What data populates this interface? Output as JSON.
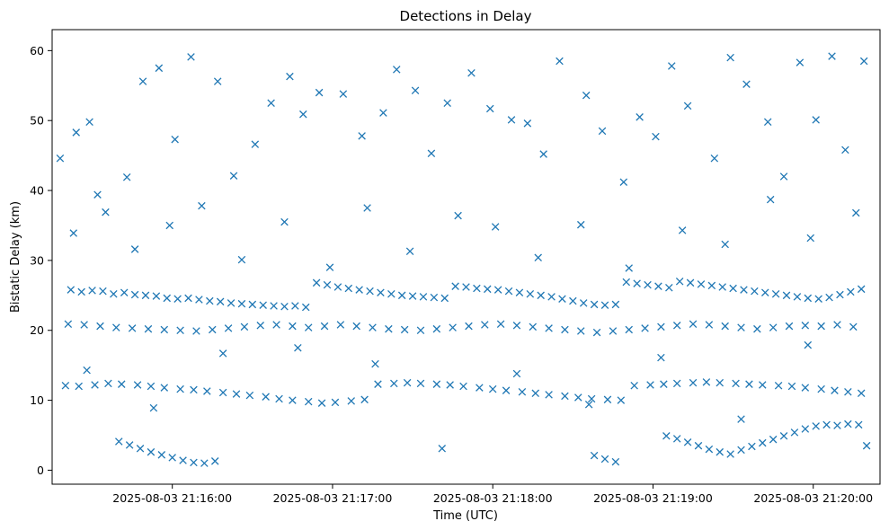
{
  "chart_data": {
    "type": "scatter",
    "title": "Detections in Delay",
    "xlabel": "Time (UTC)",
    "ylabel": "Bistatic Delay (km)",
    "marker": "x",
    "color": "#1f77b4",
    "grid": false,
    "legend": "none",
    "xlim": [
      "2025-08-03 21:15:15",
      "2025-08-03 21:20:25"
    ],
    "ylim": [
      -2,
      63
    ],
    "xticks": [
      {
        "value": "2025-08-03 21:16:00",
        "label": "2025-08-03 21:16:00"
      },
      {
        "value": "2025-08-03 21:17:00",
        "label": "2025-08-03 21:17:00"
      },
      {
        "value": "2025-08-03 21:18:00",
        "label": "2025-08-03 21:18:00"
      },
      {
        "value": "2025-08-03 21:19:00",
        "label": "2025-08-03 21:19:00"
      },
      {
        "value": "2025-08-03 21:20:00",
        "label": "2025-08-03 21:20:00"
      }
    ],
    "yticks": [
      0,
      10,
      20,
      30,
      40,
      50,
      60
    ],
    "ytick_labels": [
      "0",
      "10",
      "20",
      "30",
      "40",
      "50",
      "60"
    ],
    "series": [
      {
        "x": [
          "2025-08-03 21:15:22",
          "2025-08-03 21:15:26",
          "2025-08-03 21:15:30",
          "2025-08-03 21:15:34",
          "2025-08-03 21:15:38",
          "2025-08-03 21:15:42",
          "2025-08-03 21:15:46",
          "2025-08-03 21:15:50",
          "2025-08-03 21:15:54",
          "2025-08-03 21:15:58",
          "2025-08-03 21:16:02",
          "2025-08-03 21:16:06",
          "2025-08-03 21:16:10",
          "2025-08-03 21:16:14",
          "2025-08-03 21:16:18",
          "2025-08-03 21:16:22",
          "2025-08-03 21:16:26",
          "2025-08-03 21:16:30",
          "2025-08-03 21:16:34",
          "2025-08-03 21:16:38",
          "2025-08-03 21:16:42",
          "2025-08-03 21:16:46",
          "2025-08-03 21:16:50",
          "2025-08-03 21:16:54",
          "2025-08-03 21:16:58",
          "2025-08-03 21:17:02",
          "2025-08-03 21:17:06",
          "2025-08-03 21:17:10",
          "2025-08-03 21:17:14",
          "2025-08-03 21:17:18",
          "2025-08-03 21:17:22",
          "2025-08-03 21:17:26",
          "2025-08-03 21:17:30",
          "2025-08-03 21:17:34",
          "2025-08-03 21:17:38",
          "2025-08-03 21:17:42",
          "2025-08-03 21:17:46",
          "2025-08-03 21:17:50",
          "2025-08-03 21:17:54",
          "2025-08-03 21:17:58",
          "2025-08-03 21:18:02",
          "2025-08-03 21:18:06",
          "2025-08-03 21:18:10",
          "2025-08-03 21:18:14",
          "2025-08-03 21:18:18",
          "2025-08-03 21:18:22",
          "2025-08-03 21:18:26",
          "2025-08-03 21:18:30",
          "2025-08-03 21:18:34",
          "2025-08-03 21:18:38",
          "2025-08-03 21:18:42",
          "2025-08-03 21:18:46",
          "2025-08-03 21:18:50",
          "2025-08-03 21:18:54",
          "2025-08-03 21:18:58",
          "2025-08-03 21:19:02",
          "2025-08-03 21:19:06",
          "2025-08-03 21:19:10",
          "2025-08-03 21:19:14",
          "2025-08-03 21:19:18",
          "2025-08-03 21:19:22",
          "2025-08-03 21:19:26",
          "2025-08-03 21:19:30",
          "2025-08-03 21:19:34",
          "2025-08-03 21:19:38",
          "2025-08-03 21:19:42",
          "2025-08-03 21:19:46",
          "2025-08-03 21:19:50",
          "2025-08-03 21:19:54",
          "2025-08-03 21:19:58",
          "2025-08-03 21:20:02",
          "2025-08-03 21:20:06",
          "2025-08-03 21:20:10",
          "2025-08-03 21:20:14",
          "2025-08-03 21:20:18",
          "2025-08-03 21:15:20",
          "2025-08-03 21:15:25",
          "2025-08-03 21:15:31",
          "2025-08-03 21:15:36",
          "2025-08-03 21:15:41",
          "2025-08-03 21:15:47",
          "2025-08-03 21:15:52",
          "2025-08-03 21:15:57",
          "2025-08-03 21:16:03",
          "2025-08-03 21:16:08",
          "2025-08-03 21:16:13",
          "2025-08-03 21:16:19",
          "2025-08-03 21:16:24",
          "2025-08-03 21:16:29",
          "2025-08-03 21:16:35",
          "2025-08-03 21:16:40",
          "2025-08-03 21:16:45",
          "2025-08-03 21:16:51",
          "2025-08-03 21:16:56",
          "2025-08-03 21:17:01",
          "2025-08-03 21:17:07",
          "2025-08-03 21:17:12",
          "2025-08-03 21:17:17",
          "2025-08-03 21:17:23",
          "2025-08-03 21:17:28",
          "2025-08-03 21:17:33",
          "2025-08-03 21:17:39",
          "2025-08-03 21:17:44",
          "2025-08-03 21:17:49",
          "2025-08-03 21:17:55",
          "2025-08-03 21:18:00",
          "2025-08-03 21:18:05",
          "2025-08-03 21:18:11",
          "2025-08-03 21:18:16",
          "2025-08-03 21:18:21",
          "2025-08-03 21:18:27",
          "2025-08-03 21:18:32",
          "2025-08-03 21:18:37",
          "2025-08-03 21:18:43",
          "2025-08-03 21:18:48",
          "2025-08-03 21:18:53",
          "2025-08-03 21:18:59",
          "2025-08-03 21:19:04",
          "2025-08-03 21:19:09",
          "2025-08-03 21:19:15",
          "2025-08-03 21:19:20",
          "2025-08-03 21:19:25",
          "2025-08-03 21:19:31",
          "2025-08-03 21:19:36",
          "2025-08-03 21:19:41",
          "2025-08-03 21:19:47",
          "2025-08-03 21:19:52",
          "2025-08-03 21:19:57",
          "2025-08-03 21:20:03",
          "2025-08-03 21:20:08",
          "2025-08-03 21:20:13",
          "2025-08-03 21:20:18",
          "2025-08-03 21:15:21",
          "2025-08-03 21:15:27",
          "2025-08-03 21:15:33",
          "2025-08-03 21:15:39",
          "2025-08-03 21:15:45",
          "2025-08-03 21:15:51",
          "2025-08-03 21:15:57",
          "2025-08-03 21:16:03",
          "2025-08-03 21:16:09",
          "2025-08-03 21:16:15",
          "2025-08-03 21:16:21",
          "2025-08-03 21:16:27",
          "2025-08-03 21:16:33",
          "2025-08-03 21:16:39",
          "2025-08-03 21:16:45",
          "2025-08-03 21:16:51",
          "2025-08-03 21:16:57",
          "2025-08-03 21:17:03",
          "2025-08-03 21:17:09",
          "2025-08-03 21:17:15",
          "2025-08-03 21:17:21",
          "2025-08-03 21:17:27",
          "2025-08-03 21:17:33",
          "2025-08-03 21:17:39",
          "2025-08-03 21:17:45",
          "2025-08-03 21:17:51",
          "2025-08-03 21:17:57",
          "2025-08-03 21:18:03",
          "2025-08-03 21:18:09",
          "2025-08-03 21:18:15",
          "2025-08-03 21:18:21",
          "2025-08-03 21:18:27",
          "2025-08-03 21:18:33",
          "2025-08-03 21:18:39",
          "2025-08-03 21:18:45",
          "2025-08-03 21:18:51",
          "2025-08-03 21:18:57",
          "2025-08-03 21:19:03",
          "2025-08-03 21:19:09",
          "2025-08-03 21:19:15",
          "2025-08-03 21:19:21",
          "2025-08-03 21:19:27",
          "2025-08-03 21:19:33",
          "2025-08-03 21:19:39",
          "2025-08-03 21:19:45",
          "2025-08-03 21:19:51",
          "2025-08-03 21:19:57",
          "2025-08-03 21:20:03",
          "2025-08-03 21:20:09",
          "2025-08-03 21:20:15",
          "2025-08-03 21:15:40",
          "2025-08-03 21:15:44",
          "2025-08-03 21:15:48",
          "2025-08-03 21:15:52",
          "2025-08-03 21:15:56",
          "2025-08-03 21:16:00",
          "2025-08-03 21:16:04",
          "2025-08-03 21:16:08",
          "2025-08-03 21:16:12",
          "2025-08-03 21:16:16",
          "2025-08-03 21:18:38",
          "2025-08-03 21:18:42",
          "2025-08-03 21:18:46",
          "2025-08-03 21:19:05",
          "2025-08-03 21:19:09",
          "2025-08-03 21:19:13",
          "2025-08-03 21:19:17",
          "2025-08-03 21:19:21",
          "2025-08-03 21:19:25",
          "2025-08-03 21:19:29",
          "2025-08-03 21:19:33",
          "2025-08-03 21:19:37",
          "2025-08-03 21:19:41",
          "2025-08-03 21:19:45",
          "2025-08-03 21:19:49",
          "2025-08-03 21:19:53",
          "2025-08-03 21:19:57",
          "2025-08-03 21:20:01",
          "2025-08-03 21:20:05",
          "2025-08-03 21:20:09",
          "2025-08-03 21:20:13",
          "2025-08-03 21:20:17",
          "2025-08-03 21:15:18",
          "2025-08-03 21:15:24",
          "2025-08-03 21:15:29",
          "2025-08-03 21:15:35",
          "2025-08-03 21:15:43",
          "2025-08-03 21:15:49",
          "2025-08-03 21:15:55",
          "2025-08-03 21:16:01",
          "2025-08-03 21:16:07",
          "2025-08-03 21:16:17",
          "2025-08-03 21:16:23",
          "2025-08-03 21:16:31",
          "2025-08-03 21:16:37",
          "2025-08-03 21:16:44",
          "2025-08-03 21:16:49",
          "2025-08-03 21:16:55",
          "2025-08-03 21:17:04",
          "2025-08-03 21:17:11",
          "2025-08-03 21:17:19",
          "2025-08-03 21:17:24",
          "2025-08-03 21:17:31",
          "2025-08-03 21:17:37",
          "2025-08-03 21:17:43",
          "2025-08-03 21:17:52",
          "2025-08-03 21:17:59",
          "2025-08-03 21:18:07",
          "2025-08-03 21:18:13",
          "2025-08-03 21:18:19",
          "2025-08-03 21:18:25",
          "2025-08-03 21:18:35",
          "2025-08-03 21:18:41",
          "2025-08-03 21:18:49",
          "2025-08-03 21:18:55",
          "2025-08-03 21:19:01",
          "2025-08-03 21:19:07",
          "2025-08-03 21:19:13",
          "2025-08-03 21:19:23",
          "2025-08-03 21:19:29",
          "2025-08-03 21:19:35",
          "2025-08-03 21:19:43",
          "2025-08-03 21:19:49",
          "2025-08-03 21:19:55",
          "2025-08-03 21:20:01",
          "2025-08-03 21:20:07",
          "2025-08-03 21:20:12",
          "2025-08-03 21:20:19",
          "2025-08-03 21:15:23",
          "2025-08-03 21:15:32",
          "2025-08-03 21:15:46",
          "2025-08-03 21:15:59",
          "2025-08-03 21:16:11",
          "2025-08-03 21:16:26",
          "2025-08-03 21:16:42",
          "2025-08-03 21:16:59",
          "2025-08-03 21:17:13",
          "2025-08-03 21:17:29",
          "2025-08-03 21:17:47",
          "2025-08-03 21:18:01",
          "2025-08-03 21:18:17",
          "2025-08-03 21:18:33",
          "2025-08-03 21:18:51",
          "2025-08-03 21:19:11",
          "2025-08-03 21:19:27",
          "2025-08-03 21:19:44",
          "2025-08-03 21:19:59",
          "2025-08-03 21:20:16",
          "2025-08-03 21:15:28",
          "2025-08-03 21:15:53",
          "2025-08-03 21:16:19",
          "2025-08-03 21:16:47",
          "2025-08-03 21:17:16",
          "2025-08-03 21:17:41",
          "2025-08-03 21:18:09",
          "2025-08-03 21:18:36",
          "2025-08-03 21:19:03",
          "2025-08-03 21:19:33",
          "2025-08-03 21:19:58",
          "2025-08-03 21:20:20"
        ],
        "y": [
          25.8,
          25.5,
          25.7,
          25.6,
          25.2,
          25.4,
          25.1,
          25.0,
          24.9,
          24.6,
          24.5,
          24.6,
          24.4,
          24.2,
          24.1,
          23.9,
          23.8,
          23.7,
          23.6,
          23.5,
          23.4,
          23.5,
          23.3,
          26.8,
          26.5,
          26.2,
          26.0,
          25.8,
          25.6,
          25.4,
          25.2,
          25.0,
          24.9,
          24.8,
          24.7,
          24.6,
          26.3,
          26.2,
          26.0,
          25.9,
          25.8,
          25.6,
          25.4,
          25.2,
          25.0,
          24.8,
          24.5,
          24.2,
          23.9,
          23.7,
          23.6,
          23.7,
          26.9,
          26.7,
          26.5,
          26.3,
          26.1,
          27.0,
          26.8,
          26.6,
          26.4,
          26.2,
          26.0,
          25.8,
          25.6,
          25.4,
          25.2,
          25.0,
          24.8,
          24.6,
          24.5,
          24.7,
          25.1,
          25.5,
          25.9,
          12.1,
          12.0,
          12.2,
          12.4,
          12.3,
          12.2,
          12.0,
          11.8,
          11.6,
          11.5,
          11.3,
          11.1,
          10.9,
          10.7,
          10.5,
          10.2,
          10.0,
          9.8,
          9.6,
          9.7,
          9.9,
          10.1,
          12.3,
          12.4,
          12.5,
          12.4,
          12.3,
          12.2,
          12.0,
          11.8,
          11.6,
          11.4,
          11.2,
          11.0,
          10.8,
          10.6,
          10.4,
          10.2,
          10.1,
          10.0,
          12.1,
          12.2,
          12.3,
          12.4,
          12.5,
          12.6,
          12.5,
          12.4,
          12.3,
          12.2,
          12.1,
          12.0,
          11.8,
          11.6,
          11.4,
          11.2,
          11.0,
          20.9,
          20.8,
          20.6,
          20.4,
          20.3,
          20.2,
          20.1,
          20.0,
          19.9,
          20.1,
          20.3,
          20.5,
          20.7,
          20.8,
          20.6,
          20.4,
          20.6,
          20.8,
          20.6,
          20.4,
          20.2,
          20.1,
          20.0,
          20.2,
          20.4,
          20.6,
          20.8,
          20.9,
          20.7,
          20.5,
          20.3,
          20.1,
          19.9,
          19.7,
          19.9,
          20.1,
          20.3,
          20.5,
          20.7,
          20.9,
          20.8,
          20.6,
          20.4,
          20.2,
          20.4,
          20.6,
          20.7,
          20.6,
          20.8,
          20.5,
          4.1,
          3.6,
          3.1,
          2.6,
          2.2,
          1.8,
          1.4,
          1.1,
          1.0,
          1.3,
          2.1,
          1.6,
          1.2,
          4.9,
          4.5,
          4.0,
          3.5,
          3.0,
          2.6,
          2.3,
          2.9,
          3.4,
          3.9,
          4.4,
          4.9,
          5.4,
          5.9,
          6.3,
          6.5,
          6.4,
          6.6,
          6.5,
          44.6,
          48.3,
          49.8,
          36.9,
          41.9,
          55.6,
          57.5,
          47.3,
          59.1,
          55.6,
          42.1,
          46.6,
          52.5,
          56.3,
          50.9,
          54.0,
          53.8,
          47.8,
          51.1,
          57.3,
          54.3,
          45.3,
          52.5,
          56.8,
          51.7,
          50.1,
          49.6,
          45.2,
          58.5,
          53.6,
          48.5,
          41.2,
          50.5,
          47.7,
          57.8,
          52.1,
          44.6,
          59.0,
          55.2,
          49.8,
          42.0,
          58.3,
          50.1,
          59.2,
          45.8,
          58.5,
          33.9,
          39.4,
          31.6,
          35.0,
          37.8,
          30.1,
          35.5,
          29.0,
          37.5,
          31.3,
          36.4,
          34.8,
          30.4,
          35.1,
          28.9,
          34.3,
          32.3,
          38.7,
          33.2,
          36.8,
          14.3,
          8.9,
          16.7,
          17.5,
          15.2,
          3.1,
          13.8,
          9.4,
          16.1,
          7.3,
          17.9,
          3.5
        ]
      }
    ]
  }
}
